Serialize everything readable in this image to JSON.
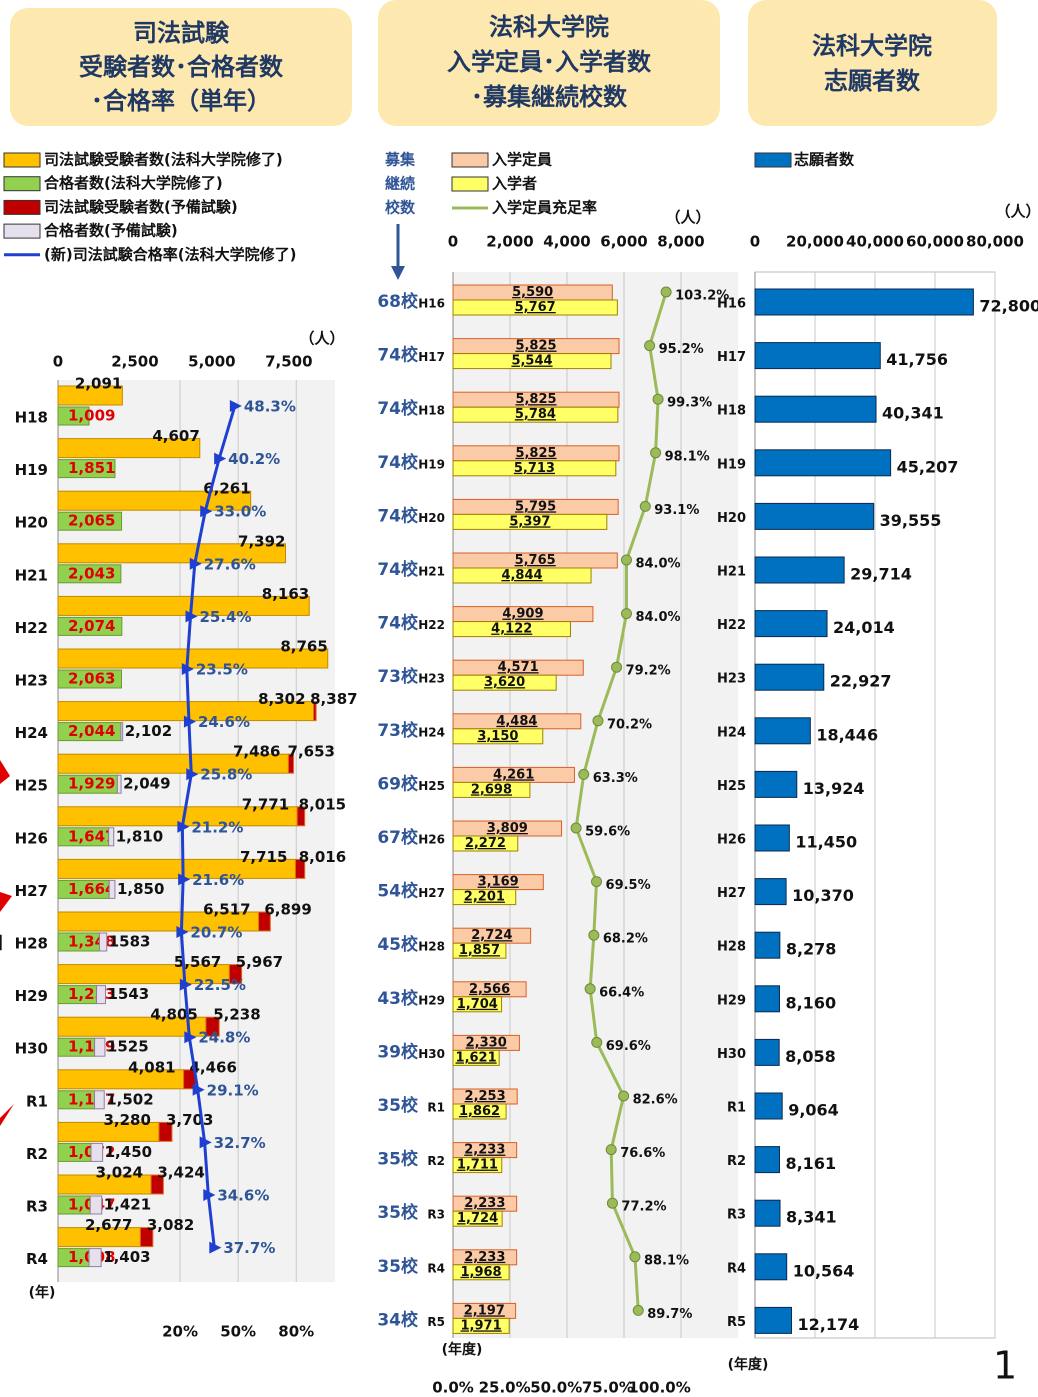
{
  "margin_text": "】",
  "chart_data": [
    {
      "type": "bar",
      "orientation": "horizontal",
      "stacked": true,
      "title": [
        "司法試験",
        "受験者数･合格者数",
        "･合格率（単年）"
      ],
      "unit_label": "（人）",
      "category_axis_label": "(年)",
      "categories": [
        "H18",
        "H19",
        "H20",
        "H21",
        "H22",
        "H23",
        "H24",
        "H25",
        "H26",
        "H27",
        "H28",
        "H29",
        "H30",
        "R1",
        "R2",
        "R3",
        "R4"
      ],
      "series": [
        {
          "name": "司法試験受験者数(法科大学院修了)",
          "color": "#ffc000",
          "edgecolor": "#c08a00",
          "label_color": "#111111",
          "values": [
            2091,
            4607,
            6261,
            7392,
            8163,
            8765,
            8302,
            7486,
            7771,
            7715,
            6517,
            5567,
            4805,
            4081,
            3280,
            3024,
            2677
          ],
          "value_labels": [
            "2,091",
            "4,607",
            "6,261",
            "7,392",
            "8,163",
            "8,765",
            "8,302",
            "7,486",
            "7,771",
            "7,715",
            "6,517",
            "5,567",
            "4,805",
            "4,081",
            "3,280",
            "3,024",
            "2,677"
          ]
        },
        {
          "name": "合格者数(法科大学院修了)",
          "color": "#92d050",
          "edgecolor": "#6a9a30",
          "label_color": "#e00000",
          "values": [
            1009,
            1851,
            2065,
            2043,
            2074,
            2063,
            2044,
            1929,
            1647,
            1664,
            1348,
            1253,
            1189,
            1187,
            1072,
            1047,
            1008
          ],
          "value_labels": [
            "1,009",
            "1,851",
            "2,065",
            "2,043",
            "2,074",
            "2,063",
            "2,044",
            "1,929",
            "1,647",
            "1,664",
            "1,348",
            "1,253",
            "1,189",
            "1,187",
            "1,072",
            "1,047",
            "1,008"
          ]
        },
        {
          "name": "司法試験受験者数(予備試験)",
          "color": "#c00000",
          "edgecolor": "#e07020",
          "values": [
            null,
            null,
            null,
            null,
            null,
            null,
            85,
            167,
            244,
            301,
            382,
            400,
            433,
            385,
            423,
            400,
            405
          ]
        },
        {
          "name": "合格者数(予備試験)",
          "color": "#e6e0ec",
          "edgecolor": "#9080a0",
          "values": [
            null,
            null,
            null,
            null,
            null,
            null,
            58,
            120,
            163,
            186,
            235,
            290,
            336,
            315,
            378,
            374,
            395
          ]
        },
        {
          "name": "(新)司法試験合格率(法科大学院修了)",
          "type": "line",
          "axis": "x2",
          "color": "#1f3fd0",
          "label_color": "#2f5597",
          "values": [
            48.3,
            40.2,
            33.0,
            27.6,
            25.4,
            23.5,
            24.6,
            25.8,
            21.2,
            21.6,
            20.7,
            22.5,
            24.8,
            29.1,
            32.7,
            34.6,
            37.7
          ],
          "value_labels": [
            "48.3%",
            "40.2%",
            "33.0%",
            "27.6%",
            "25.4%",
            "23.5%",
            "24.6%",
            "25.8%",
            "21.2%",
            "21.6%",
            "20.7%",
            "22.5%",
            "24.8%",
            "29.1%",
            "32.7%",
            "34.6%",
            "37.7%"
          ]
        }
      ],
      "total_labels": [
        [
          null,
          null,
          null,
          null,
          null,
          null,
          "8,387",
          "7,653",
          "8,015",
          "8,016",
          "6,899",
          "5,967",
          "5,238",
          "4,466",
          "3,703",
          "3,424",
          "3,082"
        ],
        [
          null,
          null,
          null,
          null,
          null,
          null,
          "2,102",
          "2,049",
          "1,810",
          "1,850",
          "1583",
          "1543",
          "1525",
          "1,502",
          "1,450",
          "1,421",
          "1,403"
        ]
      ],
      "xlim": [
        0,
        9000
      ],
      "xticks": [
        0,
        {
          "value": 2500,
          "label": "2,500"
        },
        {
          "value": 5000,
          "label": "5,000"
        },
        {
          "value": 7500,
          "label": "7,500"
        }
      ],
      "x2lim": [
        -43,
        100
      ],
      "x2ticks": [
        {
          "value": 20,
          "label": "20%"
        },
        {
          "value": 50,
          "label": "50%"
        },
        {
          "value": 80,
          "label": "80%"
        }
      ],
      "grid": "x2"
    },
    {
      "type": "bar",
      "orientation": "horizontal",
      "title": [
        "法科大学院",
        "入学定員･入学者数",
        "･募集継続校数"
      ],
      "unit_label": "（人）",
      "category_axis_label": "(年度)",
      "schools_legend": [
        "募集",
        "継続",
        "校数"
      ],
      "categories": [
        "H16",
        "H17",
        "H18",
        "H19",
        "H20",
        "H21",
        "H22",
        "H23",
        "H24",
        "H25",
        "H26",
        "H27",
        "H28",
        "H29",
        "H30",
        "R1",
        "R2",
        "R3",
        "R4",
        "R5"
      ],
      "school_labels": [
        "68校",
        "74校",
        "74校",
        "74校",
        "74校",
        "74校",
        "74校",
        "73校",
        "73校",
        "69校",
        "67校",
        "54校",
        "45校",
        "43校",
        "39校",
        "35校",
        "35校",
        "35校",
        "35校",
        "34校"
      ],
      "series": [
        {
          "name": "入学定員",
          "color": "#fbcaa6",
          "edgecolor": "#d8602a",
          "label_color": "#111111",
          "values": [
            5590,
            5825,
            5825,
            5825,
            5795,
            5765,
            4909,
            4571,
            4484,
            4261,
            3809,
            3169,
            2724,
            2566,
            2330,
            2253,
            2233,
            2233,
            2233,
            2197
          ],
          "value_labels": [
            "5,590",
            "5,825",
            "5,825",
            "5,825",
            "5,795",
            "5,765",
            "4,909",
            "4,571",
            "4,484",
            "4,261",
            "3,809",
            "3,169",
            "2,724",
            "2,566",
            "2,330",
            "2,253",
            "2,233",
            "2,233",
            "2,233",
            "2,197"
          ]
        },
        {
          "name": "入学者",
          "color": "#ffff66",
          "edgecolor": "#a08000",
          "label_color": "#111111",
          "values": [
            5767,
            5544,
            5784,
            5713,
            5397,
            4844,
            4122,
            3620,
            3150,
            2698,
            2272,
            2201,
            1857,
            1704,
            1621,
            1862,
            1711,
            1724,
            1968,
            1971
          ],
          "value_labels": [
            "5,767",
            "5,544",
            "5,784",
            "5,713",
            "5,397",
            "4,844",
            "4,122",
            "3,620",
            "3,150",
            "2,698",
            "2,272",
            "2,201",
            "1,857",
            "1,704",
            "1,621",
            "1,862",
            "1,711",
            "1,724",
            "1,968",
            "1,971"
          ]
        },
        {
          "name": "入学定員充足率",
          "type": "line",
          "axis": "x2",
          "color": "#9bbb59",
          "label_color": "#111111",
          "values": [
            103.2,
            95.2,
            99.3,
            98.1,
            93.1,
            84.0,
            84.0,
            79.2,
            70.2,
            63.3,
            59.6,
            69.5,
            68.2,
            66.4,
            69.6,
            82.6,
            76.6,
            77.2,
            88.1,
            89.7
          ],
          "value_labels": [
            "103.2%",
            "95.2%",
            "99.3%",
            "98.1%",
            "93.1%",
            "84.0%",
            "84.0%",
            "79.2%",
            "70.2%",
            "63.3%",
            "59.6%",
            "69.5%",
            "68.2%",
            "66.4%",
            "69.6%",
            "82.6%",
            "76.6%",
            "77.2%",
            "88.1%",
            "89.7%"
          ]
        }
      ],
      "xlim": [
        0,
        10000
      ],
      "xticks": [
        0,
        {
          "value": 2000,
          "label": "2,000"
        },
        {
          "value": 4000,
          "label": "4,000"
        },
        {
          "value": 6000,
          "label": "6,000"
        },
        {
          "value": 8000,
          "label": "8,000"
        }
      ],
      "x2lim": [
        0,
        138
      ],
      "x2ticks": [
        {
          "value": 0,
          "label": "0.0%"
        },
        {
          "value": 25,
          "label": "25.0%"
        },
        {
          "value": 50,
          "label": "50.0%"
        },
        {
          "value": 75,
          "label": "75.0%"
        },
        {
          "value": 100,
          "label": "100.0%"
        }
      ],
      "grid": "x"
    },
    {
      "type": "bar",
      "orientation": "horizontal",
      "title": [
        "法科大学院",
        "志願者数"
      ],
      "unit_label": "（人）",
      "category_axis_label": "(年度)",
      "categories": [
        "H16",
        "H17",
        "H18",
        "H19",
        "H20",
        "H21",
        "H22",
        "H23",
        "H24",
        "H25",
        "H26",
        "H27",
        "H28",
        "H29",
        "H30",
        "R1",
        "R2",
        "R3",
        "R4",
        "R5"
      ],
      "series": [
        {
          "name": "志願者数",
          "color": "#0070c0",
          "edgecolor": "#0a2a50",
          "label_color": "#111111",
          "values": [
            72800,
            41756,
            40341,
            45207,
            39555,
            29714,
            24014,
            22927,
            18446,
            13924,
            11450,
            10370,
            8278,
            8160,
            8058,
            9064,
            8161,
            8341,
            10564,
            12174
          ],
          "value_labels": [
            "72,800",
            "41,756",
            "40,341",
            "45,207",
            "39,555",
            "29,714",
            "24,014",
            "22,927",
            "18,446",
            "13,924",
            "11,450",
            "10,370",
            "8,278",
            "8,160",
            "8,058",
            "9,064",
            "8,161",
            "8,341",
            "10,564",
            "12,174"
          ]
        }
      ],
      "xlim": [
        0,
        80000
      ],
      "xticks": [
        0,
        {
          "value": 20000,
          "label": "20,000"
        },
        {
          "value": 40000,
          "label": "40,000"
        },
        {
          "value": 60000,
          "label": "60,000"
        },
        {
          "value": 80000,
          "label": "80,000"
        }
      ],
      "grid": "x"
    }
  ]
}
